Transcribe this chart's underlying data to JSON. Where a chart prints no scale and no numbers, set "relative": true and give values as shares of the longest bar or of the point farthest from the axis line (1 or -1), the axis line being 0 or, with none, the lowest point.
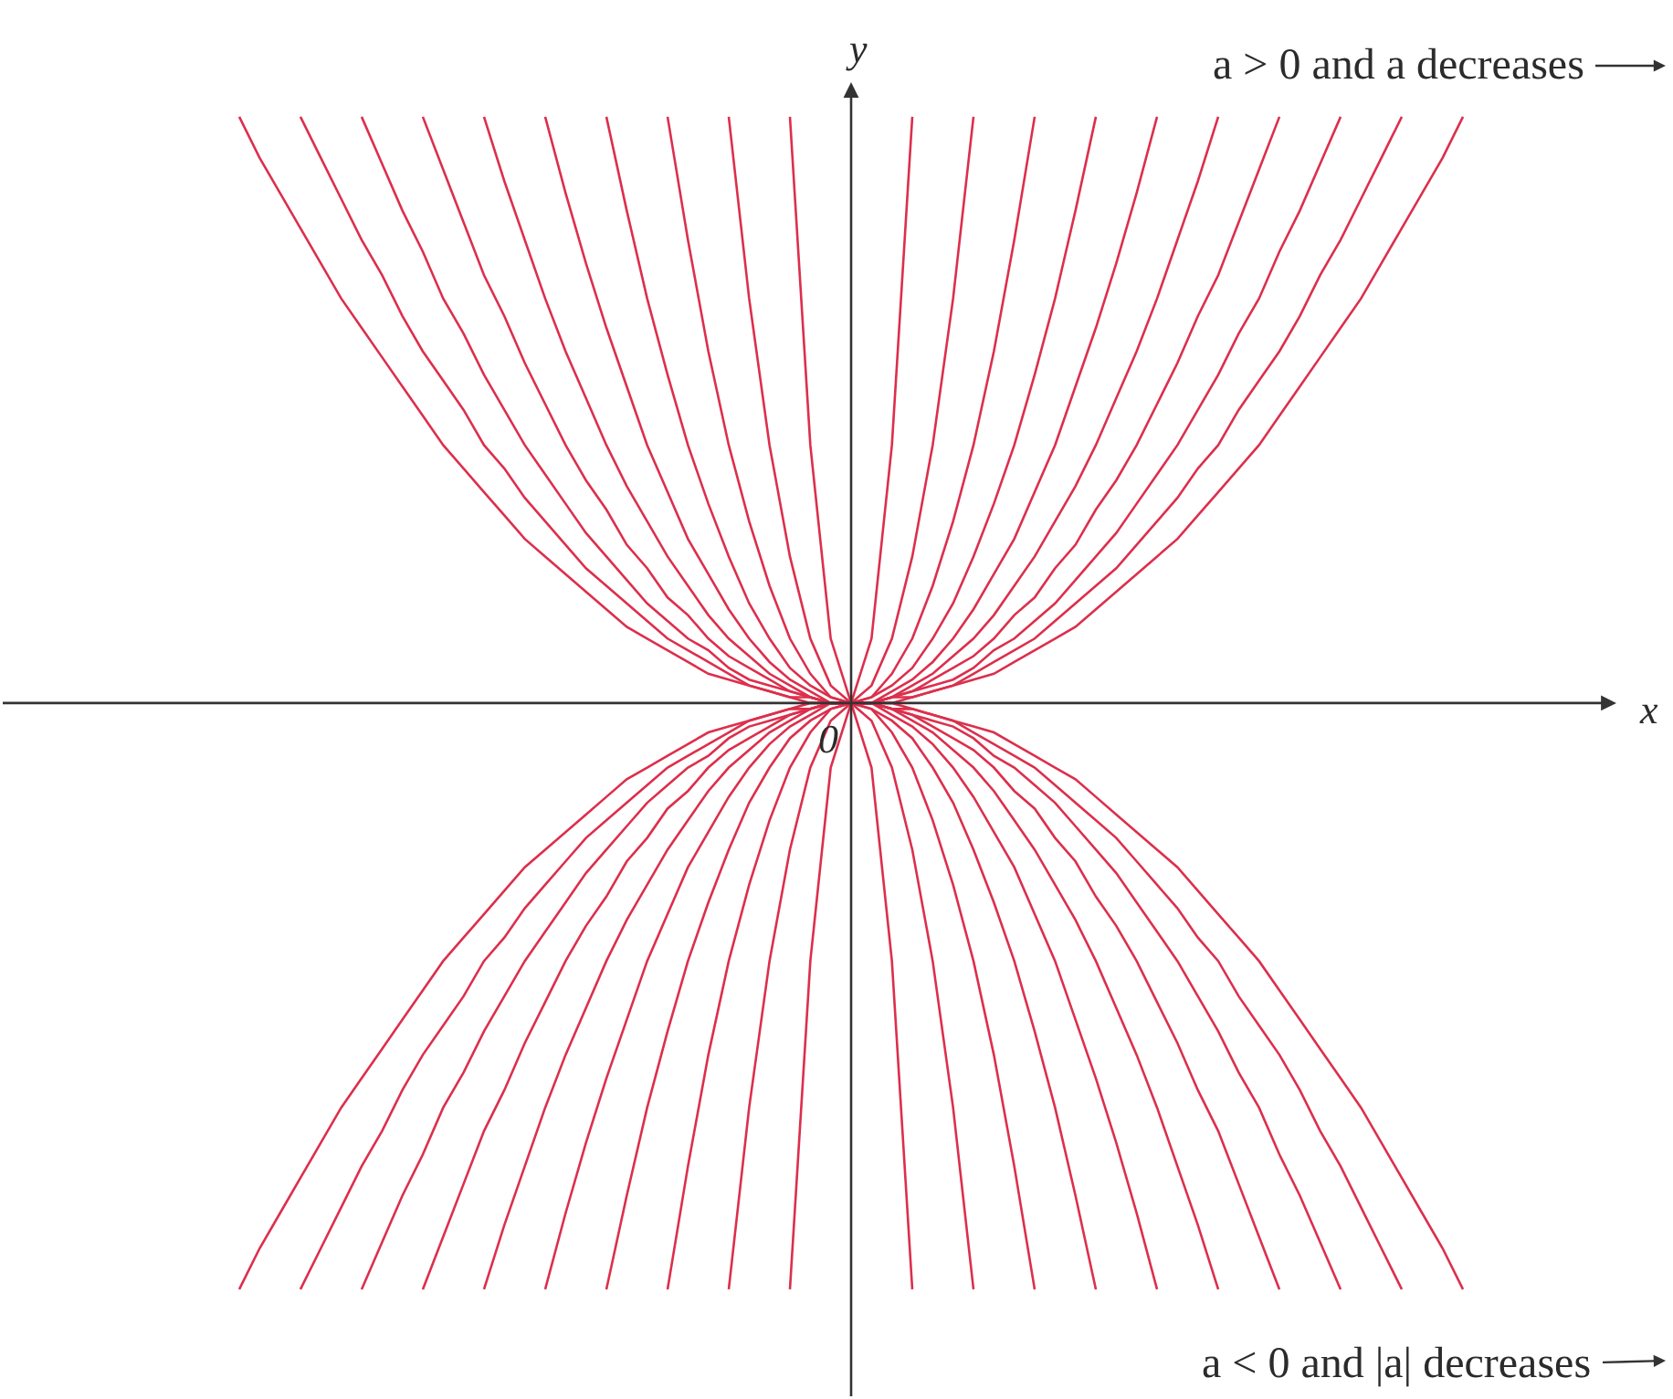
{
  "chart_data": {
    "type": "line",
    "relative": true,
    "xlabel": "x",
    "ylabel": "y",
    "annotations": [
      "a > 0 and a decreases",
      "a < 0 and |a| decreases",
      "0"
    ],
    "categories": [
      null,
      null,
      null,
      null,
      null,
      null,
      null,
      null,
      null,
      null,
      null,
      null,
      null,
      null,
      null,
      null,
      null,
      null,
      null,
      null,
      null,
      null,
      null,
      null,
      null,
      null,
      null,
      null,
      null,
      null,
      null,
      null,
      null,
      null,
      null,
      null,
      null,
      null,
      null,
      null,
      null,
      null,
      null,
      null,
      null,
      null,
      null,
      null,
      null,
      null,
      null,
      null,
      null,
      null,
      null,
      null,
      null,
      null,
      null,
      null,
      null
    ],
    "series": [
      {
        "color": "#dc2f4c",
        "values": [
          null,
          null,
          null,
          null,
          null,
          null,
          null,
          null,
          null,
          null,
          null,
          null,
          null,
          null,
          null,
          null,
          null,
          null,
          null,
          null,
          null,
          null,
          null,
          null,
          null,
          null,
          null,
          1,
          0.44,
          0.11,
          0,
          0.11,
          0.44,
          1,
          null,
          null,
          null,
          null,
          null,
          null,
          null,
          null,
          null,
          null,
          null,
          null,
          null,
          null,
          null,
          null,
          null,
          null,
          null,
          null,
          null,
          null,
          null,
          null,
          null,
          null,
          null
        ]
      },
      {
        "color": "#dc2f4c",
        "values": [
          null,
          null,
          null,
          null,
          null,
          null,
          null,
          null,
          null,
          null,
          null,
          null,
          null,
          null,
          null,
          null,
          null,
          null,
          null,
          null,
          null,
          null,
          null,
          null,
          1,
          0.69,
          0.44,
          0.25,
          0.11,
          0.03,
          0,
          0.03,
          0.11,
          0.25,
          0.44,
          0.69,
          1,
          null,
          null,
          null,
          null,
          null,
          null,
          null,
          null,
          null,
          null,
          null,
          null,
          null,
          null,
          null,
          null,
          null,
          null,
          null,
          null,
          null,
          null,
          null,
          null
        ]
      },
      {
        "color": "#dc2f4c",
        "values": [
          null,
          null,
          null,
          null,
          null,
          null,
          null,
          null,
          null,
          null,
          null,
          null,
          null,
          null,
          null,
          null,
          null,
          null,
          null,
          null,
          null,
          1,
          0.79,
          0.6,
          0.44,
          0.31,
          0.2,
          0.11,
          0.05,
          0.01,
          0,
          0.01,
          0.05,
          0.11,
          0.2,
          0.31,
          0.44,
          0.6,
          0.79,
          1,
          null,
          null,
          null,
          null,
          null,
          null,
          null,
          null,
          null,
          null,
          null,
          null,
          null,
          null,
          null,
          null,
          null,
          null,
          null,
          null,
          null
        ]
      },
      {
        "color": "#dc2f4c",
        "values": [
          null,
          null,
          null,
          null,
          null,
          null,
          null,
          null,
          null,
          null,
          null,
          null,
          null,
          null,
          null,
          null,
          null,
          null,
          1,
          0.84,
          0.69,
          0.56,
          0.44,
          0.34,
          0.25,
          0.17,
          0.11,
          0.06,
          0.03,
          0.01,
          0,
          0.01,
          0.03,
          0.06,
          0.11,
          0.17,
          0.25,
          0.34,
          0.44,
          0.56,
          0.69,
          0.84,
          1,
          null,
          null,
          null,
          null,
          null,
          null,
          null,
          null,
          null,
          null,
          null,
          null,
          null,
          null,
          null,
          null,
          null,
          null
        ]
      },
      {
        "color": "#dc2f4c",
        "values": [
          null,
          null,
          null,
          null,
          null,
          null,
          null,
          null,
          null,
          null,
          null,
          null,
          null,
          null,
          null,
          1,
          0.87,
          0.75,
          0.64,
          0.54,
          0.44,
          0.36,
          0.28,
          0.22,
          0.16,
          0.11,
          0.07,
          0.04,
          0.02,
          0,
          0,
          0,
          0.02,
          0.04,
          0.07,
          0.11,
          0.16,
          0.22,
          0.28,
          0.36,
          0.44,
          0.54,
          0.64,
          0.75,
          0.87,
          1,
          null,
          null,
          null,
          null,
          null,
          null,
          null,
          null,
          null,
          null,
          null,
          null,
          null,
          null,
          null
        ]
      },
      {
        "color": "#dc2f4c",
        "values": [
          null,
          null,
          null,
          null,
          null,
          null,
          null,
          null,
          null,
          null,
          null,
          null,
          1,
          0.89,
          0.79,
          0.69,
          0.6,
          0.52,
          0.44,
          0.37,
          0.31,
          0.25,
          0.2,
          0.15,
          0.11,
          0.08,
          0.05,
          0.03,
          0.01,
          0,
          0,
          0,
          0.01,
          0.03,
          0.05,
          0.08,
          0.11,
          0.15,
          0.2,
          0.25,
          0.31,
          0.37,
          0.44,
          0.52,
          0.6,
          0.69,
          0.79,
          0.89,
          1,
          null,
          null,
          null,
          null,
          null,
          null,
          null,
          null,
          null,
          null,
          null,
          null
        ]
      },
      {
        "color": "#dc2f4c",
        "values": [
          null,
          null,
          null,
          null,
          null,
          null,
          null,
          null,
          null,
          1,
          0.91,
          0.82,
          0.73,
          0.66,
          0.58,
          0.51,
          0.44,
          0.38,
          0.33,
          0.27,
          0.23,
          0.18,
          0.15,
          0.11,
          0.08,
          0.06,
          0.04,
          0.02,
          0.01,
          0,
          0,
          0,
          0.01,
          0.02,
          0.04,
          0.06,
          0.08,
          0.11,
          0.15,
          0.18,
          0.23,
          0.27,
          0.33,
          0.38,
          0.44,
          0.51,
          0.58,
          0.66,
          0.73,
          0.82,
          0.91,
          1,
          null,
          null,
          null,
          null,
          null,
          null,
          null,
          null,
          null
        ]
      },
      {
        "color": "#dc2f4c",
        "values": [
          null,
          null,
          null,
          null,
          null,
          null,
          1,
          0.92,
          0.84,
          0.77,
          0.69,
          0.63,
          0.56,
          0.5,
          0.44,
          0.39,
          0.34,
          0.29,
          0.25,
          0.21,
          0.17,
          0.14,
          0.11,
          0.09,
          0.06,
          0.04,
          0.03,
          0.02,
          0.01,
          0,
          0,
          0,
          0.01,
          0.02,
          0.03,
          0.04,
          0.06,
          0.09,
          0.11,
          0.14,
          0.17,
          0.21,
          0.25,
          0.29,
          0.34,
          0.39,
          0.44,
          0.5,
          0.56,
          0.63,
          0.69,
          0.77,
          0.84,
          0.92,
          1,
          null,
          null,
          null,
          null,
          null,
          null
        ]
      },
      {
        "color": "#dc2f4c",
        "values": [
          null,
          null,
          null,
          1,
          0.93,
          0.86,
          0.79,
          0.73,
          0.66,
          0.6,
          0.55,
          0.5,
          0.44,
          0.4,
          0.35,
          0.31,
          0.27,
          0.23,
          0.2,
          0.17,
          0.14,
          0.11,
          0.09,
          0.07,
          0.05,
          0.03,
          0.02,
          0.01,
          0.01,
          0,
          0,
          0,
          0.01,
          0.01,
          0.02,
          0.03,
          0.05,
          0.07,
          0.09,
          0.11,
          0.14,
          0.17,
          0.2,
          0.23,
          0.27,
          0.31,
          0.35,
          0.4,
          0.44,
          0.5,
          0.55,
          0.6,
          0.66,
          0.73,
          0.79,
          0.86,
          0.93,
          1,
          null,
          null,
          null
        ]
      },
      {
        "color": "#dc2f4c",
        "values": [
          1,
          0.93,
          0.87,
          0.81,
          0.75,
          0.69,
          0.64,
          0.59,
          0.54,
          0.49,
          0.44,
          0.4,
          0.36,
          0.32,
          0.28,
          0.25,
          0.22,
          0.19,
          0.16,
          0.13,
          0.11,
          0.09,
          0.07,
          0.05,
          0.04,
          0.03,
          0.02,
          0.01,
          0,
          0,
          0,
          0,
          0,
          0.01,
          0.02,
          0.03,
          0.04,
          0.05,
          0.07,
          0.09,
          0.11,
          0.13,
          0.16,
          0.19,
          0.22,
          0.25,
          0.28,
          0.32,
          0.36,
          0.4,
          0.44,
          0.49,
          0.54,
          0.59,
          0.64,
          0.69,
          0.75,
          0.81,
          0.87,
          0.93,
          1
        ]
      },
      {
        "color": "#dc2f4c",
        "values": [
          null,
          null,
          null,
          null,
          null,
          null,
          null,
          null,
          null,
          null,
          null,
          null,
          null,
          null,
          null,
          null,
          null,
          null,
          null,
          null,
          null,
          null,
          null,
          null,
          null,
          null,
          null,
          -1,
          -0.44,
          -0.11,
          0,
          -0.11,
          -0.44,
          -1,
          null,
          null,
          null,
          null,
          null,
          null,
          null,
          null,
          null,
          null,
          null,
          null,
          null,
          null,
          null,
          null,
          null,
          null,
          null,
          null,
          null,
          null,
          null,
          null,
          null,
          null,
          null
        ]
      },
      {
        "color": "#dc2f4c",
        "values": [
          null,
          null,
          null,
          null,
          null,
          null,
          null,
          null,
          null,
          null,
          null,
          null,
          null,
          null,
          null,
          null,
          null,
          null,
          null,
          null,
          null,
          null,
          null,
          null,
          -1,
          -0.69,
          -0.44,
          -0.25,
          -0.11,
          -0.03,
          0,
          -0.03,
          -0.11,
          -0.25,
          -0.44,
          -0.69,
          -1,
          null,
          null,
          null,
          null,
          null,
          null,
          null,
          null,
          null,
          null,
          null,
          null,
          null,
          null,
          null,
          null,
          null,
          null,
          null,
          null,
          null,
          null,
          null,
          null
        ]
      },
      {
        "color": "#dc2f4c",
        "values": [
          null,
          null,
          null,
          null,
          null,
          null,
          null,
          null,
          null,
          null,
          null,
          null,
          null,
          null,
          null,
          null,
          null,
          null,
          null,
          null,
          null,
          -1,
          -0.79,
          -0.6,
          -0.44,
          -0.31,
          -0.2,
          -0.11,
          -0.05,
          -0.01,
          0,
          -0.01,
          -0.05,
          -0.11,
          -0.2,
          -0.31,
          -0.44,
          -0.6,
          -0.79,
          -1,
          null,
          null,
          null,
          null,
          null,
          null,
          null,
          null,
          null,
          null,
          null,
          null,
          null,
          null,
          null,
          null,
          null,
          null,
          null,
          null,
          null
        ]
      },
      {
        "color": "#dc2f4c",
        "values": [
          null,
          null,
          null,
          null,
          null,
          null,
          null,
          null,
          null,
          null,
          null,
          null,
          null,
          null,
          null,
          null,
          null,
          null,
          -1,
          -0.84,
          -0.69,
          -0.56,
          -0.44,
          -0.34,
          -0.25,
          -0.17,
          -0.11,
          -0.06,
          -0.03,
          -0.01,
          0,
          -0.01,
          -0.03,
          -0.06,
          -0.11,
          -0.17,
          -0.25,
          -0.34,
          -0.44,
          -0.56,
          -0.69,
          -0.84,
          -1,
          null,
          null,
          null,
          null,
          null,
          null,
          null,
          null,
          null,
          null,
          null,
          null,
          null,
          null,
          null,
          null,
          null,
          null
        ]
      },
      {
        "color": "#dc2f4c",
        "values": [
          null,
          null,
          null,
          null,
          null,
          null,
          null,
          null,
          null,
          null,
          null,
          null,
          null,
          null,
          null,
          -1,
          -0.87,
          -0.75,
          -0.64,
          -0.54,
          -0.44,
          -0.36,
          -0.28,
          -0.22,
          -0.16,
          -0.11,
          -0.07,
          -0.04,
          -0.02,
          0,
          0,
          0,
          -0.02,
          -0.04,
          -0.07,
          -0.11,
          -0.16,
          -0.22,
          -0.28,
          -0.36,
          -0.44,
          -0.54,
          -0.64,
          -0.75,
          -0.87,
          -1,
          null,
          null,
          null,
          null,
          null,
          null,
          null,
          null,
          null,
          null,
          null,
          null,
          null,
          null,
          null
        ]
      },
      {
        "color": "#dc2f4c",
        "values": [
          null,
          null,
          null,
          null,
          null,
          null,
          null,
          null,
          null,
          null,
          null,
          null,
          -1,
          -0.89,
          -0.79,
          -0.69,
          -0.6,
          -0.52,
          -0.44,
          -0.37,
          -0.31,
          -0.25,
          -0.2,
          -0.15,
          -0.11,
          -0.08,
          -0.05,
          -0.03,
          -0.01,
          0,
          0,
          0,
          -0.01,
          -0.03,
          -0.05,
          -0.08,
          -0.11,
          -0.15,
          -0.2,
          -0.25,
          -0.31,
          -0.37,
          -0.44,
          -0.52,
          -0.6,
          -0.69,
          -0.79,
          -0.89,
          -1,
          null,
          null,
          null,
          null,
          null,
          null,
          null,
          null,
          null,
          null,
          null,
          null
        ]
      },
      {
        "color": "#dc2f4c",
        "values": [
          null,
          null,
          null,
          null,
          null,
          null,
          null,
          null,
          null,
          -1,
          -0.91,
          -0.82,
          -0.73,
          -0.66,
          -0.58,
          -0.51,
          -0.44,
          -0.38,
          -0.33,
          -0.27,
          -0.23,
          -0.18,
          -0.15,
          -0.11,
          -0.08,
          -0.06,
          -0.04,
          -0.02,
          -0.01,
          0,
          0,
          0,
          -0.01,
          -0.02,
          -0.04,
          -0.06,
          -0.08,
          -0.11,
          -0.15,
          -0.18,
          -0.23,
          -0.27,
          -0.33,
          -0.38,
          -0.44,
          -0.51,
          -0.58,
          -0.66,
          -0.73,
          -0.82,
          -0.91,
          -1,
          null,
          null,
          null,
          null,
          null,
          null,
          null,
          null,
          null
        ]
      },
      {
        "color": "#dc2f4c",
        "values": [
          null,
          null,
          null,
          null,
          null,
          null,
          -1,
          -0.92,
          -0.84,
          -0.77,
          -0.69,
          -0.63,
          -0.56,
          -0.5,
          -0.44,
          -0.39,
          -0.34,
          -0.29,
          -0.25,
          -0.21,
          -0.17,
          -0.14,
          -0.11,
          -0.09,
          -0.06,
          -0.04,
          -0.03,
          -0.02,
          -0.01,
          0,
          0,
          0,
          -0.01,
          -0.02,
          -0.03,
          -0.04,
          -0.06,
          -0.09,
          -0.11,
          -0.14,
          -0.17,
          -0.21,
          -0.25,
          -0.29,
          -0.34,
          -0.39,
          -0.44,
          -0.5,
          -0.56,
          -0.63,
          -0.69,
          -0.77,
          -0.84,
          -0.92,
          -1,
          null,
          null,
          null,
          null,
          null,
          null
        ]
      },
      {
        "color": "#dc2f4c",
        "values": [
          null,
          null,
          null,
          -1,
          -0.93,
          -0.86,
          -0.79,
          -0.73,
          -0.66,
          -0.6,
          -0.55,
          -0.5,
          -0.44,
          -0.4,
          -0.35,
          -0.31,
          -0.27,
          -0.23,
          -0.2,
          -0.17,
          -0.14,
          -0.11,
          -0.09,
          -0.07,
          -0.05,
          -0.03,
          -0.02,
          -0.01,
          -0.01,
          0,
          0,
          0,
          -0.01,
          -0.01,
          -0.02,
          -0.03,
          -0.05,
          -0.07,
          -0.09,
          -0.11,
          -0.14,
          -0.17,
          -0.2,
          -0.23,
          -0.27,
          -0.31,
          -0.35,
          -0.4,
          -0.44,
          -0.5,
          -0.55,
          -0.6,
          -0.66,
          -0.73,
          -0.79,
          -0.86,
          -0.93,
          -1,
          null,
          null,
          null
        ]
      },
      {
        "color": "#dc2f4c",
        "values": [
          -1,
          -0.93,
          -0.87,
          -0.81,
          -0.75,
          -0.69,
          -0.64,
          -0.59,
          -0.54,
          -0.49,
          -0.44,
          -0.4,
          -0.36,
          -0.32,
          -0.28,
          -0.25,
          -0.22,
          -0.19,
          -0.16,
          -0.13,
          -0.11,
          -0.09,
          -0.07,
          -0.05,
          -0.04,
          -0.03,
          -0.02,
          -0.01,
          0,
          0,
          0,
          0,
          0,
          -0.01,
          -0.02,
          -0.03,
          -0.04,
          -0.05,
          -0.07,
          -0.09,
          -0.11,
          -0.13,
          -0.16,
          -0.19,
          -0.22,
          -0.25,
          -0.28,
          -0.32,
          -0.36,
          -0.4,
          -0.44,
          -0.49,
          -0.54,
          -0.59,
          -0.64,
          -0.69,
          -0.75,
          -0.81,
          -0.87,
          -0.93,
          -1
        ]
      }
    ]
  }
}
